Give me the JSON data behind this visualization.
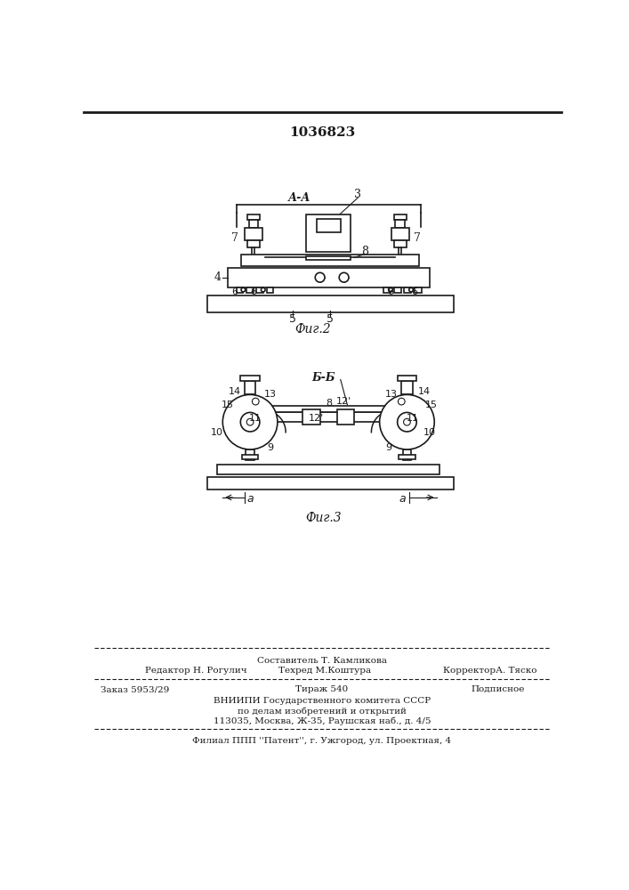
{
  "patent_number": "1036823",
  "fig2_label": "Фиг.2",
  "fig3_label": "Фиг.3",
  "section_label_fig2": "А-А",
  "section_label_fig3": "Б-Б",
  "footer_line1": "Составитель Т. Камликова",
  "footer_line2_left": "Редактор Н. Рогулич",
  "footer_line2_center": "Техред М.Коштура",
  "footer_line2_right": "КорректорА. Тяско",
  "footer_line3_left": "Заказ 5953/29",
  "footer_line3_center": "Тираж 540",
  "footer_line3_right": "Подписное",
  "footer_line4": "ВНИИПИ Государственного комитета СССР",
  "footer_line5": "по делам изобретений и открытий",
  "footer_line6": "113035, Москва, Ж-35, Раушская наб., д. 4/5",
  "footer_line7": "Филиал ППП ''Патент'', г. Ужгород, ул. Проектная, 4",
  "bg_color": "#ffffff",
  "line_color": "#1a1a1a",
  "text_color": "#1a1a1a"
}
